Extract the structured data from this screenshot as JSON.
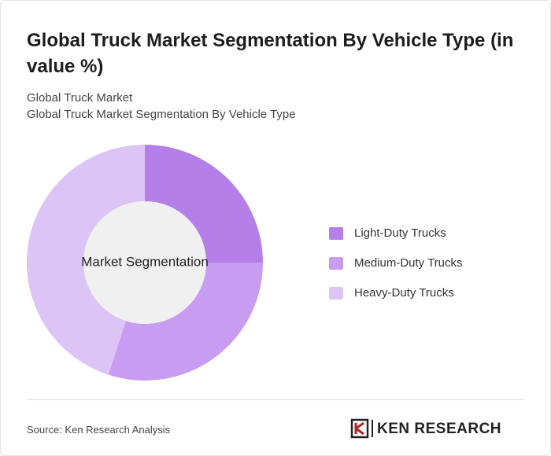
{
  "chart_data": {
    "type": "donut",
    "title": "Global Truck Market Segmentation By Vehicle Type (in value %)",
    "breadcrumb": "Global Truck Market",
    "subtitle": "Global Truck Market Segmentation By Vehicle Type",
    "center_label": "Market Segmentation",
    "categories": [
      "Light-Duty Trucks",
      "Medium-Duty Trucks",
      "Heavy-Duty Trucks"
    ],
    "values": [
      25,
      30,
      45
    ],
    "colors": [
      "#b57fe9",
      "#c89cf0",
      "#dcc4f6"
    ],
    "legend": "right"
  },
  "footer": {
    "source": "Source: Ken Research Analysis",
    "brand": "KEN RESEARCH"
  }
}
